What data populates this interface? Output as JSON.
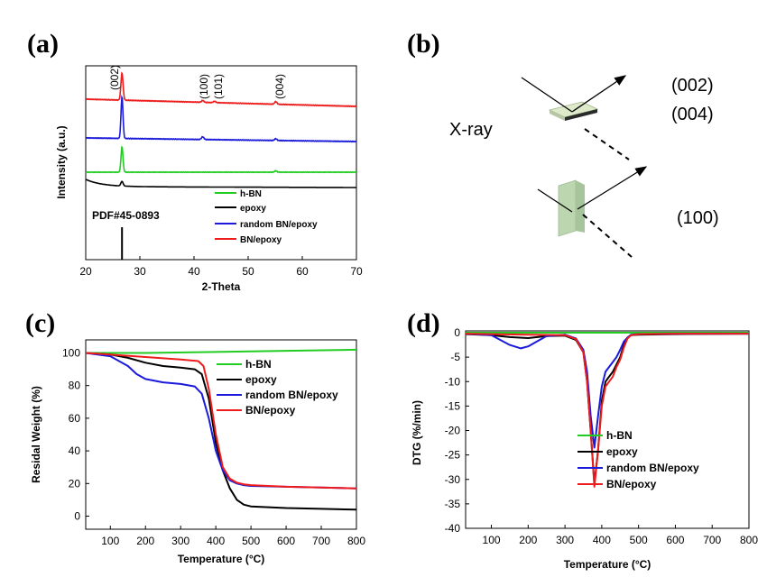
{
  "panels": {
    "a": "(a)",
    "b": "(b)",
    "c": "(c)",
    "d": "(d)"
  },
  "colors": {
    "h-BN": "#22cc22",
    "epoxy": "#000000",
    "random BN/epoxy": "#1a1adb",
    "BN/epoxy": "#ee1c1c"
  },
  "chart_data": [
    {
      "id": "a",
      "type": "line",
      "title": "",
      "xlabel": "2-Theta",
      "ylabel": "Intensity (a.u.)",
      "xlim": [
        20,
        70
      ],
      "xticks": [
        20,
        30,
        40,
        50,
        60,
        70
      ],
      "legend": [
        "h-BN",
        "epoxy",
        "random BN/epoxy",
        "BN/epoxy"
      ],
      "annotation": "PDF#45-0893",
      "peaks": [
        {
          "x": 26.7,
          "label": "(002)"
        },
        {
          "x": 41.6,
          "label": "(100)"
        },
        {
          "x": 43.8,
          "label": "(101)"
        },
        {
          "x": 55.1,
          "label": "(004)"
        }
      ],
      "reference_line": 26.7
    },
    {
      "id": "b",
      "type": "diagram",
      "labels": {
        "xray": "X-ray",
        "p002": "(002)",
        "p004": "(004)",
        "p100": "(100)"
      }
    },
    {
      "id": "c",
      "type": "line",
      "xlabel": "Temperature (°C)",
      "ylabel": "Residal Weight (%)",
      "xlim": [
        30,
        800
      ],
      "ylim": [
        -8,
        108
      ],
      "xticks": [
        100,
        200,
        300,
        400,
        500,
        600,
        700,
        800
      ],
      "yticks": [
        0,
        20,
        40,
        60,
        80,
        100
      ],
      "legend_position": "center-right",
      "series": [
        {
          "name": "h-BN",
          "x": [
            30,
            200,
            400,
            600,
            800
          ],
          "y": [
            100,
            100,
            100.6,
            101.3,
            102
          ]
        },
        {
          "name": "epoxy",
          "x": [
            30,
            100,
            150,
            200,
            250,
            300,
            340,
            360,
            380,
            400,
            420,
            440,
            460,
            480,
            500,
            550,
            600,
            700,
            800
          ],
          "y": [
            100,
            99,
            97,
            94,
            92,
            91,
            90,
            87,
            72,
            45,
            28,
            17,
            10,
            7,
            6,
            5.5,
            5,
            4.5,
            4
          ]
        },
        {
          "name": "random BN/epoxy",
          "x": [
            30,
            100,
            150,
            175,
            200,
            250,
            300,
            340,
            360,
            380,
            400,
            420,
            440,
            460,
            480,
            500,
            600,
            700,
            800
          ],
          "y": [
            100,
            98,
            92,
            87,
            84,
            82,
            81,
            79.5,
            75,
            60,
            40,
            28,
            22,
            20,
            19,
            18.5,
            18,
            17.5,
            17
          ]
        },
        {
          "name": "BN/epoxy",
          "x": [
            30,
            100,
            200,
            300,
            350,
            365,
            380,
            400,
            420,
            440,
            460,
            480,
            500,
            550,
            600,
            700,
            800
          ],
          "y": [
            100,
            99,
            97.5,
            96,
            95,
            92,
            78,
            50,
            30,
            23,
            20.5,
            19.5,
            19,
            18.5,
            18,
            17.5,
            17
          ]
        }
      ]
    },
    {
      "id": "d",
      "type": "line",
      "xlabel": "Temperature (°C)",
      "ylabel": "DTG (%/min)",
      "xlim": [
        30,
        800
      ],
      "ylim": [
        -40,
        0
      ],
      "xticks": [
        100,
        200,
        300,
        400,
        500,
        600,
        700,
        800
      ],
      "yticks": [
        0,
        -5,
        -10,
        -15,
        -20,
        -25,
        -30,
        -35,
        -40
      ],
      "legend_position": "bottom-center",
      "series": [
        {
          "name": "h-BN",
          "x": [
            30,
            800
          ],
          "y": [
            0,
            0
          ]
        },
        {
          "name": "epoxy",
          "x": [
            30,
            100,
            150,
            200,
            250,
            300,
            330,
            350,
            360,
            370,
            380,
            390,
            400,
            410,
            420,
            430,
            440,
            450,
            460,
            470,
            480,
            500,
            600,
            800
          ],
          "y": [
            -0.3,
            -0.5,
            -0.9,
            -1.1,
            -0.7,
            -0.6,
            -1.5,
            -4,
            -10,
            -20,
            -31,
            -24,
            -14,
            -10,
            -9,
            -8,
            -6.5,
            -5,
            -2.5,
            -1,
            -0.5,
            -0.4,
            -0.3,
            -0.2
          ]
        },
        {
          "name": "random BN/epoxy",
          "x": [
            30,
            100,
            150,
            180,
            200,
            250,
            300,
            330,
            350,
            360,
            370,
            380,
            390,
            400,
            410,
            420,
            430,
            440,
            450,
            460,
            470,
            480,
            500,
            600,
            800
          ],
          "y": [
            -0.2,
            -0.5,
            -2.5,
            -3.2,
            -2.8,
            -0.7,
            -0.4,
            -1.2,
            -3.5,
            -8,
            -17,
            -23.5,
            -17,
            -11,
            -8,
            -7,
            -6,
            -5,
            -3.5,
            -1.8,
            -1,
            -0.4,
            -0.3,
            -0.2,
            -0.2
          ]
        },
        {
          "name": "BN/epoxy",
          "x": [
            30,
            100,
            200,
            300,
            330,
            350,
            360,
            370,
            380,
            390,
            400,
            410,
            420,
            430,
            440,
            450,
            460,
            470,
            480,
            500,
            600,
            800
          ],
          "y": [
            -0.2,
            -0.3,
            -0.4,
            -0.5,
            -1.3,
            -4,
            -10,
            -20,
            -31.5,
            -24,
            -15,
            -11,
            -10,
            -9,
            -7,
            -5.5,
            -3,
            -1.2,
            -0.5,
            -0.3,
            -0.2,
            -0.2
          ]
        }
      ]
    }
  ]
}
